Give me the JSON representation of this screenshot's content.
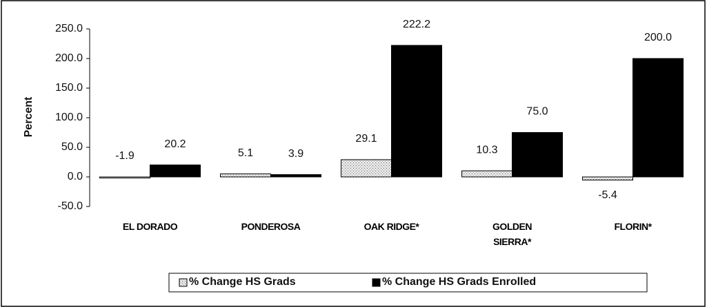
{
  "chart_data": {
    "type": "bar",
    "ylabel": "Percent",
    "categories": [
      "EL DORADO",
      "PONDEROSA",
      "OAK RIDGE*",
      "GOLDEN SIERRA*",
      "FLORIN*"
    ],
    "series": [
      {
        "name": "% Change HS Grads",
        "color": "#d8d8d8",
        "values": [
          -1.9,
          5.1,
          29.1,
          10.3,
          -5.4
        ],
        "value_labels": [
          "-1.9",
          "5.1",
          "29.1",
          "10.3",
          "-5.4"
        ]
      },
      {
        "name": "% Change HS Grads Enrolled",
        "color": "#000000",
        "values": [
          20.2,
          3.9,
          222.2,
          75.0,
          200.0
        ],
        "value_labels": [
          "20.2",
          "3.9",
          "222.2",
          "75.0",
          "200.0"
        ]
      }
    ],
    "ylim": [
      -50,
      250
    ],
    "yticks": [
      {
        "value": -50,
        "label": "-50.0"
      },
      {
        "value": 0,
        "label": "0.0"
      },
      {
        "value": 50,
        "label": "50.0"
      },
      {
        "value": 100,
        "label": "100.0"
      },
      {
        "value": 150,
        "label": "150.0"
      },
      {
        "value": 200,
        "label": "200.0"
      },
      {
        "value": 250,
        "label": "250.0"
      }
    ],
    "legend": "bottom"
  }
}
